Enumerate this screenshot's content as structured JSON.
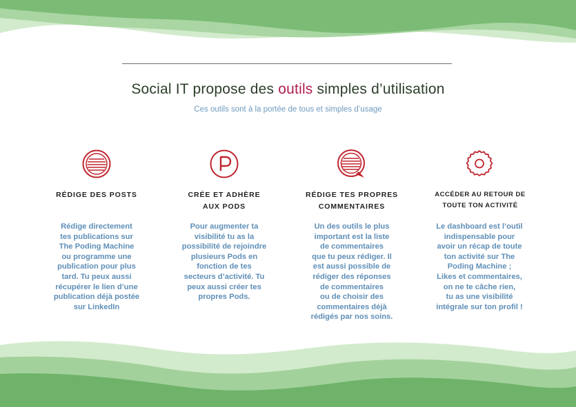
{
  "header": {
    "title_pre": "Social IT propose des ",
    "title_accent": "outils",
    "title_post": " simples d’utilisation",
    "subtitle": "Ces outils sont à la portée de tous et simples d’usage"
  },
  "features": [
    {
      "icon": "posts-icon",
      "title": "RÉDIGE DES POSTS",
      "body": "Rédige directement\ntes publications sur\nThe Poding Machine\nou programme une\npublication pour plus\ntard. Tu peux aussi\nrécupérer le lien d’une\npublication déjà postée\nsur LinkedIn"
    },
    {
      "icon": "pods-icon",
      "title": "CRÉE ET ADHÈRE\nAUX PODS",
      "body": "Pour augmenter ta\nvisibilité tu as la\npossibilité de rejoindre\nplusieurs Pods en\nfonction de tes\nsecteurs d’activité. Tu\npeux aussi créer tes\npropres Pods."
    },
    {
      "icon": "comments-icon",
      "title": "RÉDIGE TES PROPRES\nCOMMENTAIRES",
      "body": "Un des outils le plus\nimportant est la liste\nde commentaires\nque tu peux rédiger. Il\nest aussi possible de\nrédiger des réponses\nde commentaires\nou de choisir des\ncommentaires déjà\nrédigés par nos soins."
    },
    {
      "icon": "activity-icon",
      "title": "ACCÉDER AU RETOUR DE\nTOUTE TON ACTIVITÉ",
      "body": "Le dashboard est l’outil\nindispensable pour\navoir un récap de toute\nton activité sur The\nPoding Machine ;\nLikes et commentaires,\non ne te câche rien,\ntu as une visibilité\nintégrale sur ton profil !"
    }
  ],
  "colors": {
    "wave_dark": "#6fb36b",
    "wave_light": "#c9e6c3",
    "accent": "#b01e4f",
    "icon": "#c0242e",
    "body_text": "#5f8fb8",
    "subtitle": "#6f9bbf"
  }
}
